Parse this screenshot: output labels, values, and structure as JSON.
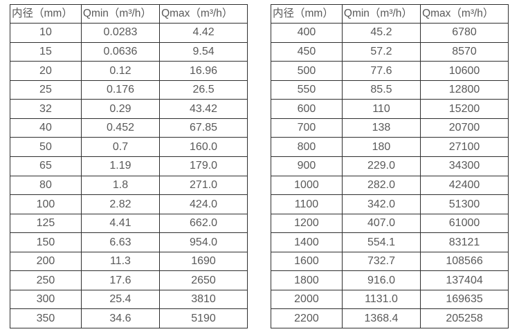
{
  "page": {
    "background_color": "#ffffff",
    "text_color": "#595959",
    "border_color": "#2e2e2e"
  },
  "tables": [
    {
      "name": "small-diameters",
      "headers": [
        "内径（mm）",
        "Qmin（m³/h）",
        "Qmax（m³/h）"
      ],
      "rows": [
        [
          "10",
          "0.0283",
          "4.42"
        ],
        [
          "15",
          "0.0636",
          "9.54"
        ],
        [
          "20",
          "0.12",
          "16.96"
        ],
        [
          "25",
          "0.176",
          "26.5"
        ],
        [
          "32",
          "0.29",
          "43.42"
        ],
        [
          "40",
          "0.452",
          "67.85"
        ],
        [
          "50",
          "0.7",
          "160.0"
        ],
        [
          "65",
          "1.19",
          "179.0"
        ],
        [
          "80",
          "1.8",
          "271.0"
        ],
        [
          "100",
          "2.82",
          "424.0"
        ],
        [
          "125",
          "4.41",
          "662.0"
        ],
        [
          "150",
          "6.63",
          "954.0"
        ],
        [
          "200",
          "11.3",
          "1690"
        ],
        [
          "250",
          "17.6",
          "2650"
        ],
        [
          "300",
          "25.4",
          "3810"
        ],
        [
          "350",
          "34.6",
          "5190"
        ]
      ]
    },
    {
      "name": "large-diameters",
      "headers": [
        "内径（mm）",
        "Qmin（m³/h）",
        "Qmax（m³/h）"
      ],
      "rows": [
        [
          "400",
          "45.2",
          "6780"
        ],
        [
          "450",
          "57.2",
          "8570"
        ],
        [
          "500",
          "77.6",
          "10600"
        ],
        [
          "550",
          "85.5",
          "12800"
        ],
        [
          "600",
          "110",
          "15200"
        ],
        [
          "700",
          "138",
          "20700"
        ],
        [
          "800",
          "180",
          "27100"
        ],
        [
          "900",
          "229.0",
          "34300"
        ],
        [
          "1000",
          "282.0",
          "42400"
        ],
        [
          "1100",
          "342.0",
          "51300"
        ],
        [
          "1200",
          "407.0",
          "61000"
        ],
        [
          "1400",
          "554.1",
          "83121"
        ],
        [
          "1600",
          "732.7",
          "108566"
        ],
        [
          "1800",
          "916.0",
          "137404"
        ],
        [
          "2000",
          "1131.0",
          "169635"
        ],
        [
          "2200",
          "1368.4",
          "205258"
        ]
      ]
    }
  ]
}
